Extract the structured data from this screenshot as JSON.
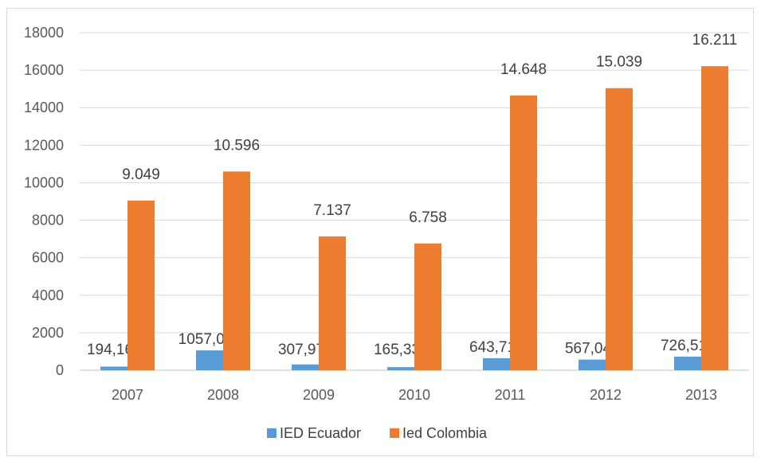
{
  "chart_data": {
    "type": "bar",
    "categories": [
      "2007",
      "2008",
      "2009",
      "2010",
      "2011",
      "2012",
      "2013"
    ],
    "series": [
      {
        "name": "IED Ecuador",
        "color": "#5b9bd5",
        "values": [
          194.16,
          1057.0,
          307.97,
          165.33,
          643.71,
          567.04,
          726.51
        ],
        "labels": [
          "194,16",
          "1057,00",
          "307,97",
          "165,33",
          "643,71",
          "567,04",
          "726,51"
        ]
      },
      {
        "name": "Ied Colombia",
        "color": "#ed7d31",
        "values": [
          9049,
          10596,
          7137,
          6758,
          14648,
          15039,
          16211
        ],
        "labels": [
          "9.049",
          "10.596",
          "7.137",
          "6.758",
          "14.648",
          "15.039",
          "16.211"
        ]
      }
    ],
    "ylim": [
      0,
      18000
    ],
    "yticks": [
      "0",
      "2000",
      "4000",
      "6000",
      "8000",
      "10000",
      "12000",
      "14000",
      "16000",
      "18000"
    ],
    "grid": true,
    "legend": "bottom"
  }
}
